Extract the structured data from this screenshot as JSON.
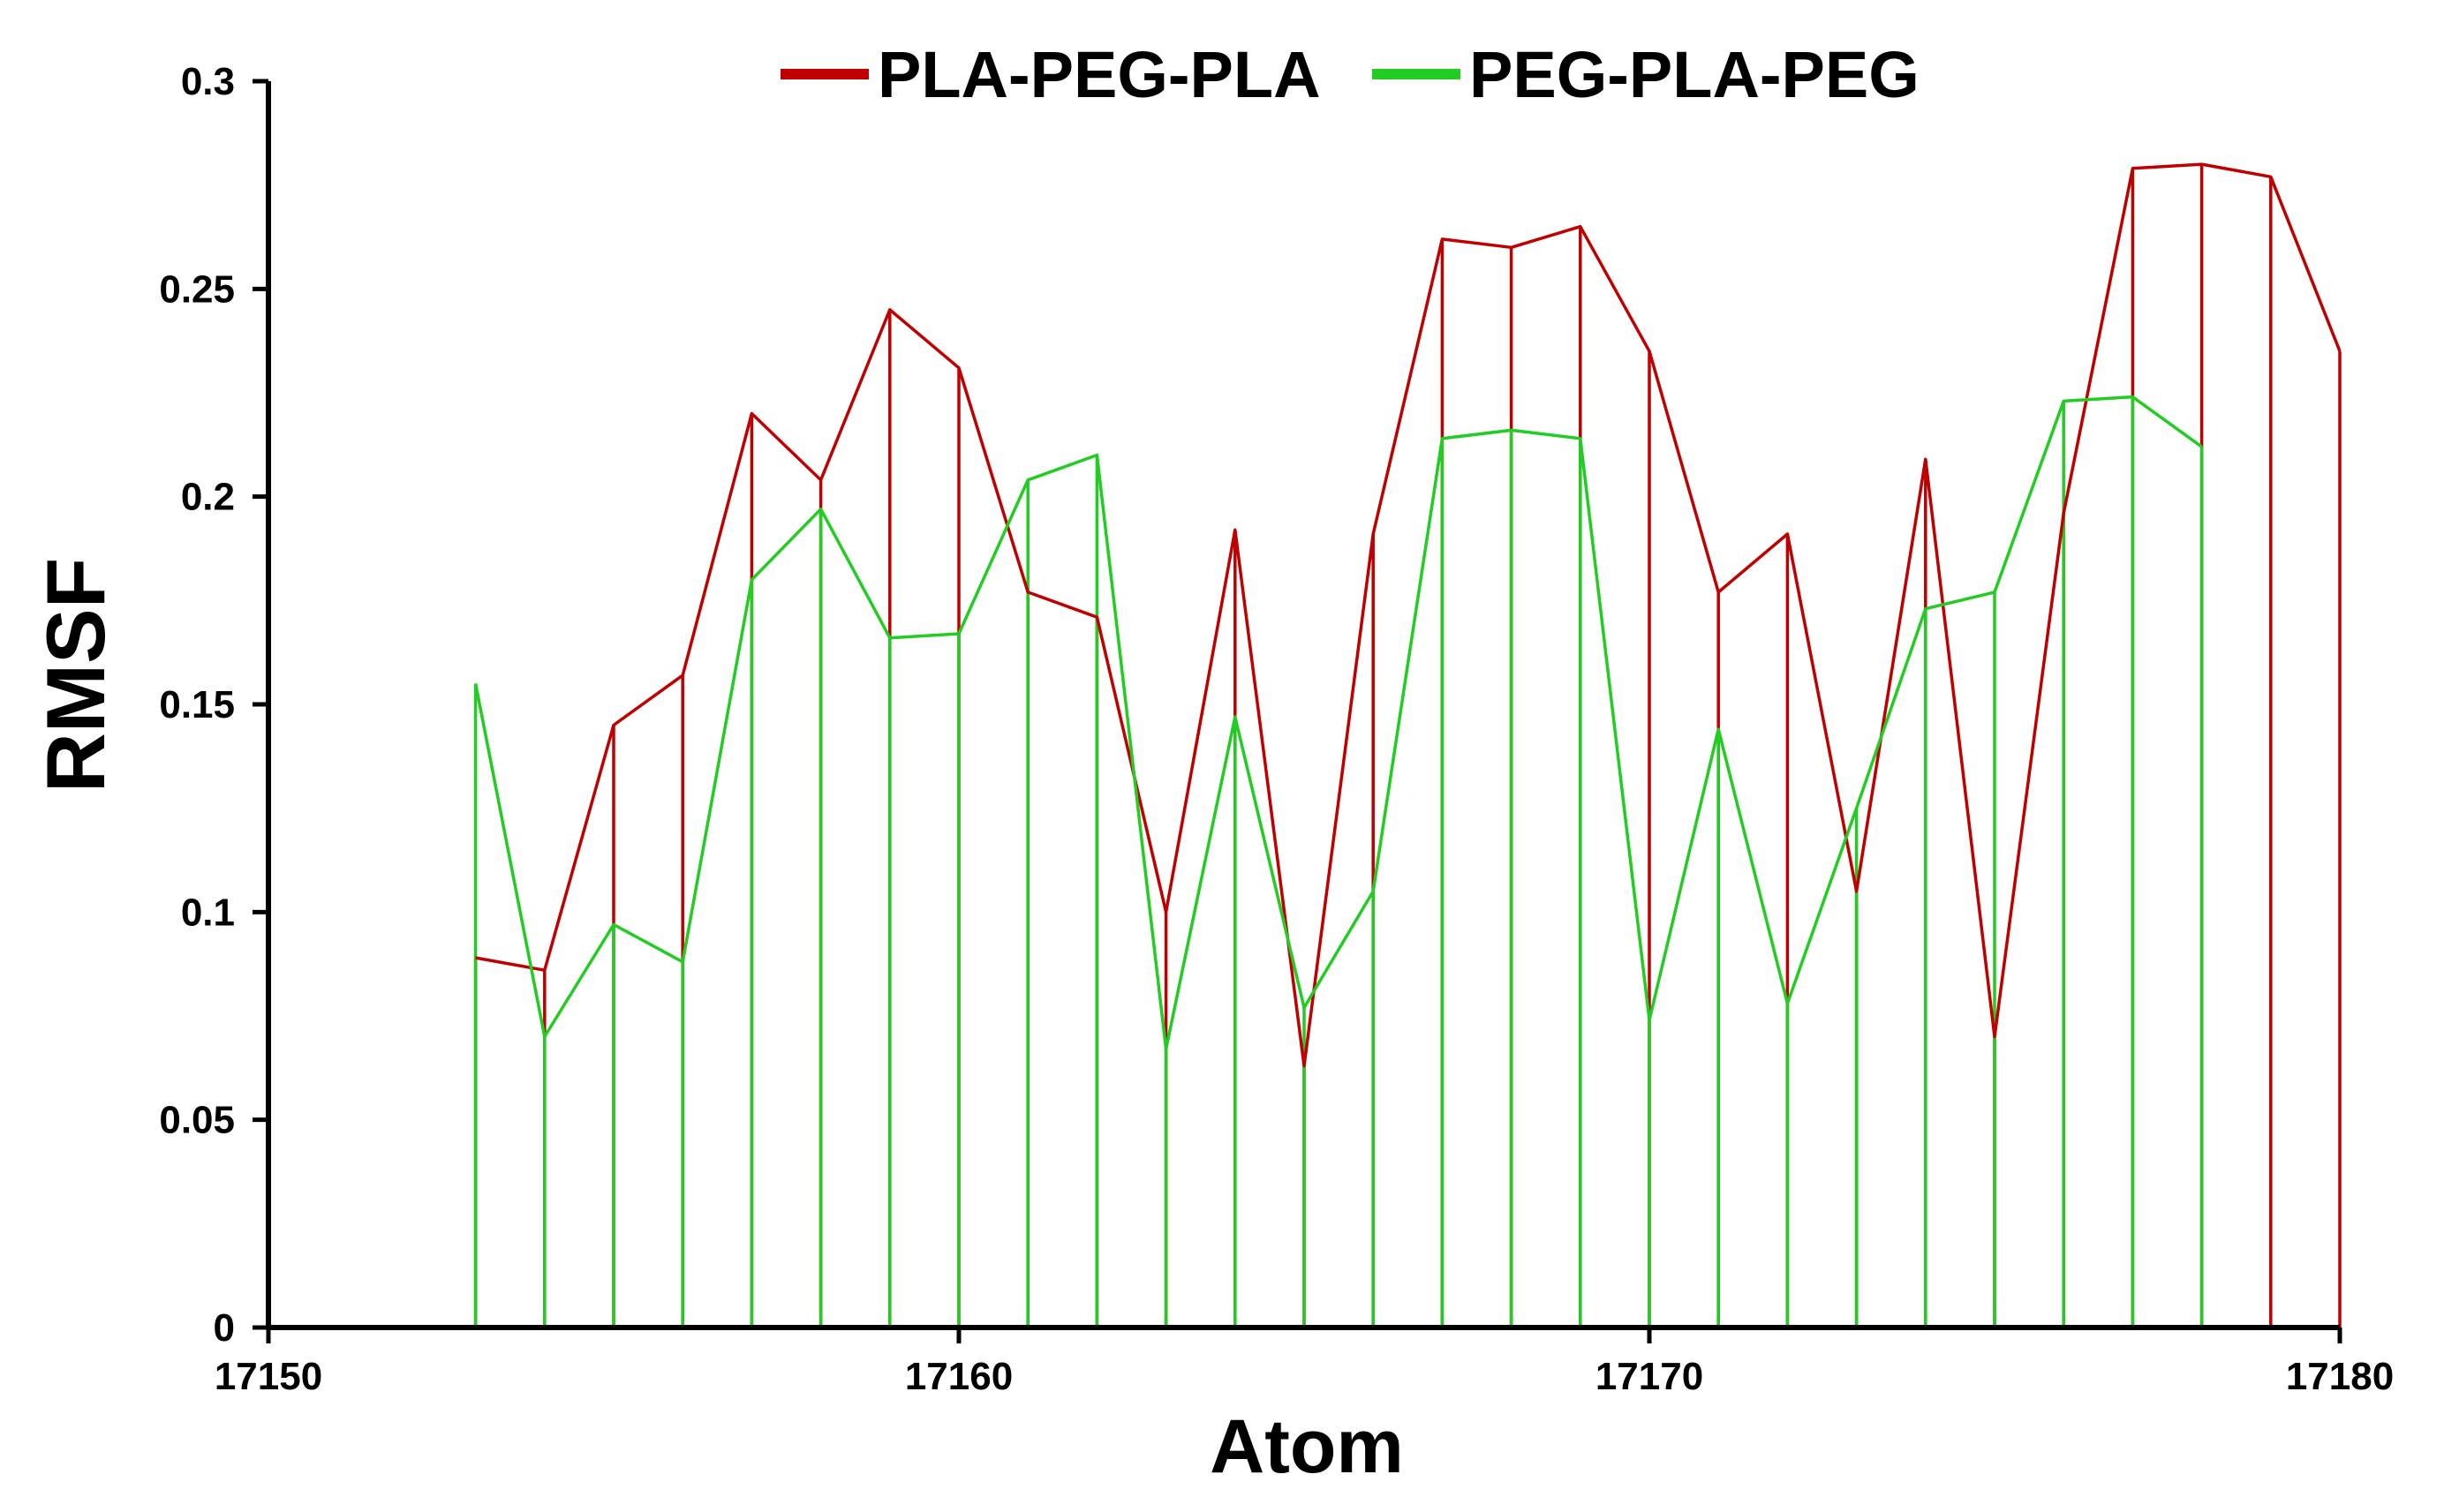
{
  "chart_data": {
    "type": "line",
    "xlabel": "Atom",
    "ylabel": "RMSF",
    "xlim": [
      17150,
      17180
    ],
    "ylim": [
      0,
      0.3
    ],
    "x_ticks": [
      17150,
      17160,
      17170,
      17180
    ],
    "x_tick_labels": [
      "17150",
      "17160",
      "17170",
      "17180"
    ],
    "y_ticks": [
      0,
      0.05,
      0.1,
      0.15,
      0.2,
      0.25,
      0.3
    ],
    "y_tick_labels": [
      "0",
      "0.05",
      "0.1",
      "0.15",
      "0.2",
      "0.25",
      "0.3"
    ],
    "grid": false,
    "legend_position": "top",
    "drop_lines": true,
    "series": [
      {
        "name": "PLA-PEG-PLA",
        "color": "#c00000",
        "x": [
          17153,
          17154,
          17155,
          17156,
          17157,
          17158,
          17159,
          17160,
          17161,
          17162,
          17163,
          17164,
          17165,
          17166,
          17167,
          17168,
          17169,
          17170,
          17171,
          17172,
          17173,
          17174,
          17175,
          17176,
          17177,
          17178,
          17179,
          17180
        ],
        "values": [
          0.089,
          0.086,
          0.145,
          0.157,
          0.22,
          0.204,
          0.245,
          0.231,
          0.177,
          0.171,
          0.1,
          0.192,
          0.063,
          0.191,
          0.262,
          0.26,
          0.265,
          0.235,
          0.177,
          0.191,
          0.105,
          0.209,
          0.07,
          0.196,
          0.279,
          0.28,
          0.277,
          0.235
        ]
      },
      {
        "name": "PEG-PLA-PEG",
        "color": "#22cc22",
        "x": [
          17153,
          17154,
          17155,
          17156,
          17157,
          17158,
          17159,
          17160,
          17161,
          17162,
          17163,
          17164,
          17165,
          17166,
          17167,
          17168,
          17169,
          17170,
          17171,
          17172,
          17173,
          17174,
          17175,
          17176,
          17177,
          17178
        ],
        "values": [
          0.155,
          0.07,
          0.097,
          0.088,
          0.18,
          0.197,
          0.166,
          0.167,
          0.204,
          0.21,
          0.067,
          0.147,
          0.077,
          0.105,
          0.214,
          0.216,
          0.214,
          0.074,
          0.144,
          0.078,
          0.125,
          0.173,
          0.177,
          0.223,
          0.224,
          0.212
        ]
      }
    ]
  }
}
